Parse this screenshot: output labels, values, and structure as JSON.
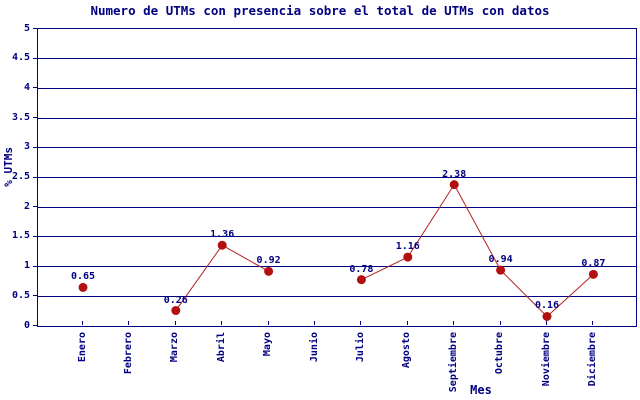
{
  "chart_data": {
    "type": "line",
    "title": "Numero de UTMs con presencia sobre el total de UTMs con datos",
    "xlabel": "Mes",
    "ylabel": "% UTMs",
    "ylim": [
      0,
      5
    ],
    "ytick_step": 0.5,
    "grid": true,
    "legend_position": "none",
    "categories": [
      "Enero",
      "Febrero",
      "Marzo",
      "Abril",
      "Mayo",
      "Junio",
      "Julio",
      "Agosto",
      "Septiembre",
      "Octubre",
      "Noviembre",
      "Diciembre"
    ],
    "values": [
      0.65,
      null,
      0.26,
      1.36,
      0.92,
      null,
      0.78,
      1.16,
      2.38,
      0.94,
      0.16,
      0.87
    ],
    "point_labels": [
      "0.65",
      "",
      "0.26",
      "1.36",
      "0.92",
      "",
      "0.78",
      "1.16",
      "2.38",
      "0.94",
      "0.16",
      "0.87"
    ],
    "colors": {
      "text": "#000080",
      "axis": "#000080",
      "grid": "#000080",
      "line": "#b22222",
      "marker": "#b11111",
      "background": "#ffffff"
    }
  }
}
